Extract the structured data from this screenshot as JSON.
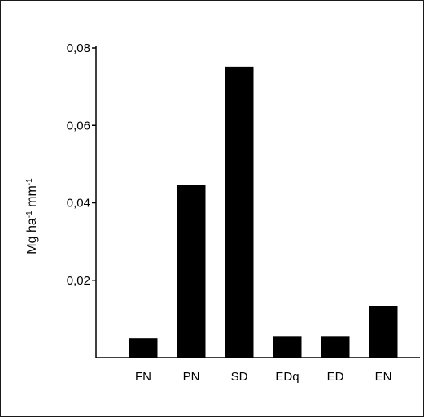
{
  "chart_data": {
    "type": "bar",
    "categories": [
      "FN",
      "PN",
      "SD",
      "EDq",
      "ED",
      "EN"
    ],
    "values": [
      0.005,
      0.0447,
      0.0752,
      0.0056,
      0.0056,
      0.0134
    ],
    "title": "",
    "xlabel": "",
    "ylabel": "Mg ha-1 mm-1",
    "ylim": [
      0,
      0.08
    ],
    "yticks": [
      0.02,
      0.04,
      0.06,
      0.08
    ],
    "ytick_labels": [
      "0,02",
      "0,04",
      "0,06",
      "0,08"
    ],
    "bar_color": "#000000",
    "grid": false,
    "legend": "none"
  }
}
